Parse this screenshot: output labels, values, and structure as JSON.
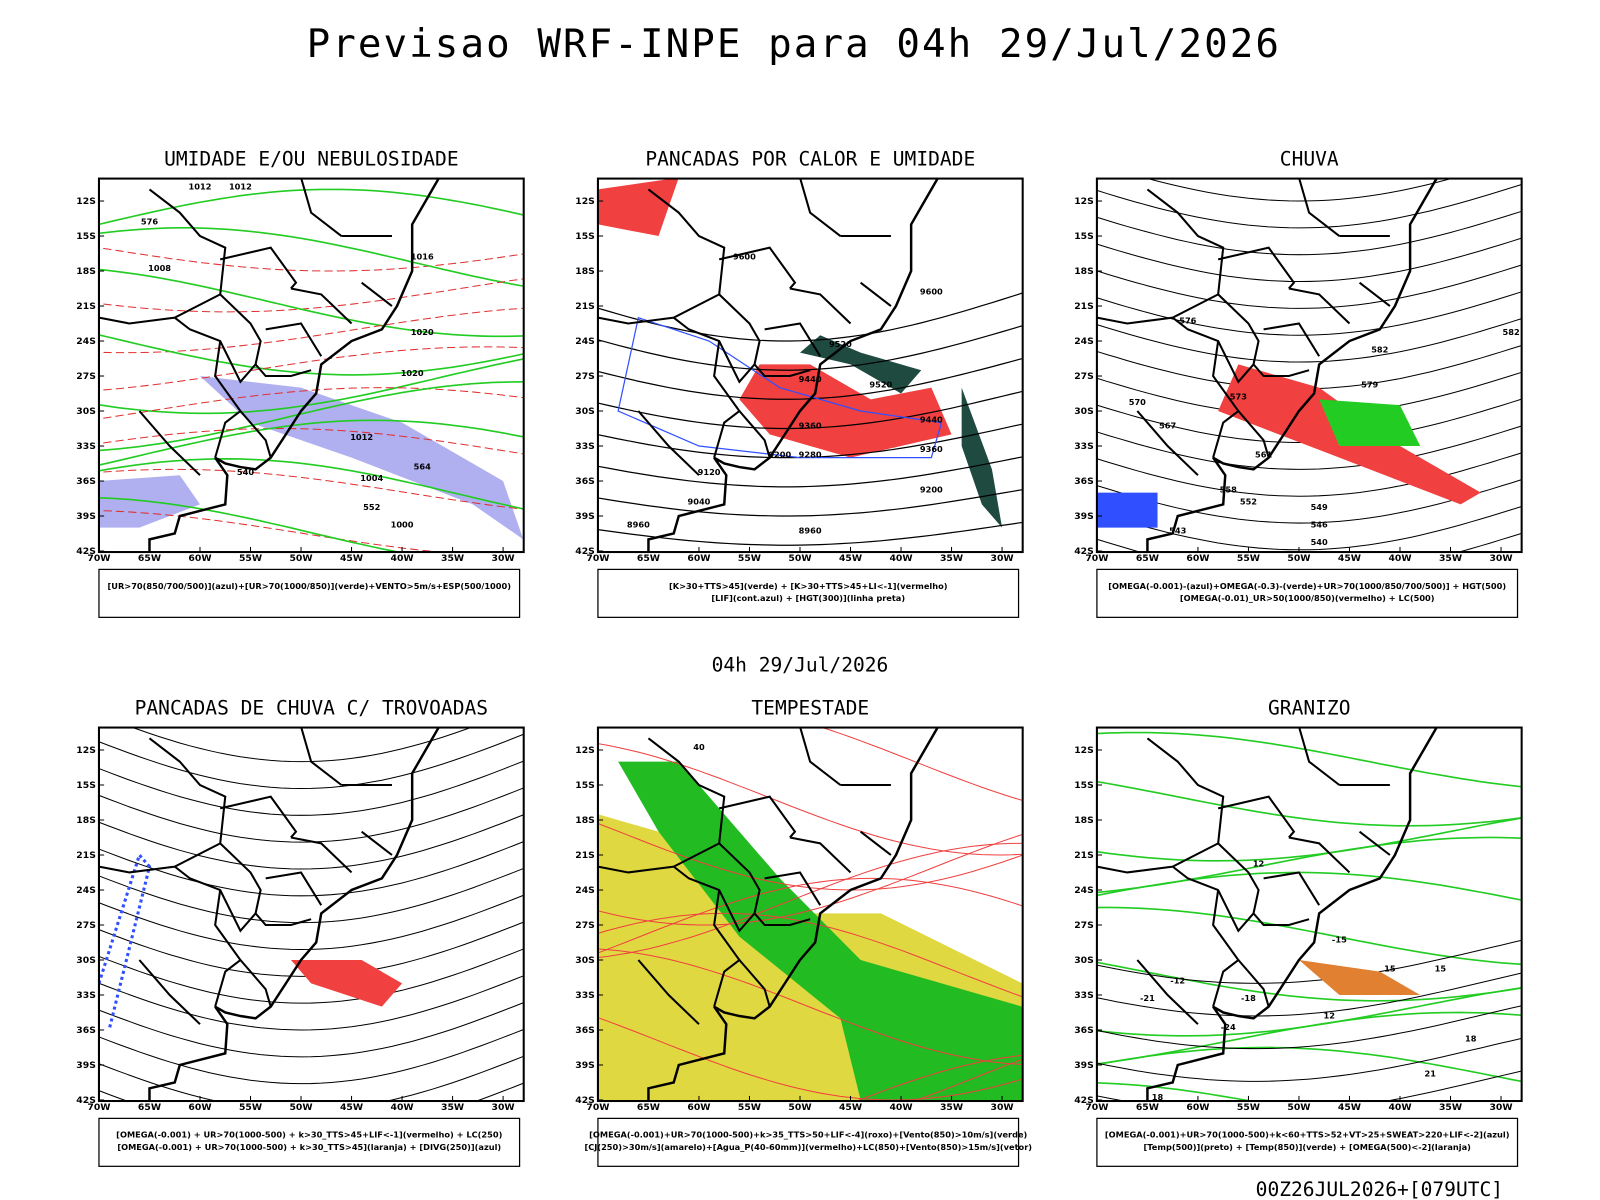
{
  "header": {
    "title": "Previsao WRF-INPE  para 04h 29/Jul/2026",
    "subtitle": "04h 29/Jul/2026",
    "footer": "00Z26JUL2026+[079UTC]"
  },
  "axes": {
    "lat_ticks": [
      {
        "value": -12,
        "label": "12S"
      },
      {
        "value": -15,
        "label": "15S"
      },
      {
        "value": -18,
        "label": "18S"
      },
      {
        "value": -21,
        "label": "21S"
      },
      {
        "value": -24,
        "label": "24S"
      },
      {
        "value": -27,
        "label": "27S"
      },
      {
        "value": -30,
        "label": "30S"
      },
      {
        "value": -33,
        "label": "33S"
      },
      {
        "value": -36,
        "label": "36S"
      },
      {
        "value": -39,
        "label": "39S"
      },
      {
        "value": -42,
        "label": "42S"
      }
    ],
    "lon_ticks": [
      {
        "value": -70,
        "label": "70W"
      },
      {
        "value": -65,
        "label": "65W"
      },
      {
        "value": -60,
        "label": "60W"
      },
      {
        "value": -55,
        "label": "55W"
      },
      {
        "value": -50,
        "label": "50W"
      },
      {
        "value": -45,
        "label": "45W"
      },
      {
        "value": -40,
        "label": "40W"
      },
      {
        "value": -35,
        "label": "35W"
      },
      {
        "value": -30,
        "label": "30W"
      }
    ]
  },
  "panels": [
    {
      "title": "UMIDADE E/OU NEBULOSIDADE",
      "caption": [
        "[UR>70(850/700/500)](azul)+[UR>70(1000/850)](verde)+VENTO>5m/s+ESP(500/1000)"
      ],
      "contour_labels": [
        "1012",
        "1008",
        "1012",
        "1016",
        "1020",
        "1020",
        "1012",
        "1004",
        "1000",
        "540",
        "552",
        "564",
        "576"
      ]
    },
    {
      "title": "PANCADAS POR CALOR E UMIDADE",
      "caption": [
        "[K>30+TTS>45](verde) + [K>30+TTS>45+LI<-1](vermelho)",
        "[LIF](cont.azul) + [HGT(300)](linha preta)"
      ],
      "contour_labels": [
        "9600",
        "9600",
        "9520",
        "9520",
        "9440",
        "9440",
        "9360",
        "9360",
        "9280",
        "9200",
        "9200",
        "9120",
        "9040",
        "8960",
        "8960"
      ]
    },
    {
      "title": "CHUVA",
      "caption": [
        "[OMEGA(-0.001)-(azul)+OMEGA(-0.3)-(verde)+UR>70(1000/850/700/500)] + HGT(500)",
        "[OMEGA(-0.01)_UR>50(1000/850)(vermelho) + LC(500)"
      ],
      "contour_labels": [
        "582",
        "582",
        "579",
        "576",
        "573",
        "570",
        "567",
        "561",
        "558",
        "552",
        "549",
        "546",
        "543",
        "540"
      ]
    },
    {
      "title": "PANCADAS DE CHUVA C/ TROVOADAS",
      "caption": [
        "[OMEGA(-0.001) + UR>70(1000-500) + k>30_TTS>45+LIF<-1](vermelho) + LC(250)",
        "[OMEGA(-0.001) + UR>70(1000-500) + k>30_TTS>45](laranja) + [DIVG(250)](azul)"
      ],
      "contour_labels": []
    },
    {
      "title": "TEMPESTADE",
      "caption": [
        "[OMEGA(-0.001)+UR>70(1000-500)+k>35_TTS>50+LIF<-4](roxo)+[Vento(850)>10m/s](verde)",
        "[CJ(250)>30m/s](amarelo)+[Agua_P(40-60mm)](vermelho)+LC(850)+[Vento(850)>15m/s](vetor)"
      ],
      "contour_labels": [
        "40"
      ]
    },
    {
      "title": "GRANIZO",
      "caption": [
        "[OMEGA(-0.001)+UR>70(1000-500)+k<60+TTS>52+VT>25+SWEAT>220+LIF<-2](azul)",
        "[Temp(500)](preto) + [Temp(850)](verde) + [OMEGA(500)<-2](laranja)"
      ],
      "contour_labels": [
        "-12",
        "-15",
        "-18",
        "-21",
        "-24",
        "12",
        "15",
        "18",
        "21",
        "18",
        "15",
        "12"
      ]
    }
  ]
}
